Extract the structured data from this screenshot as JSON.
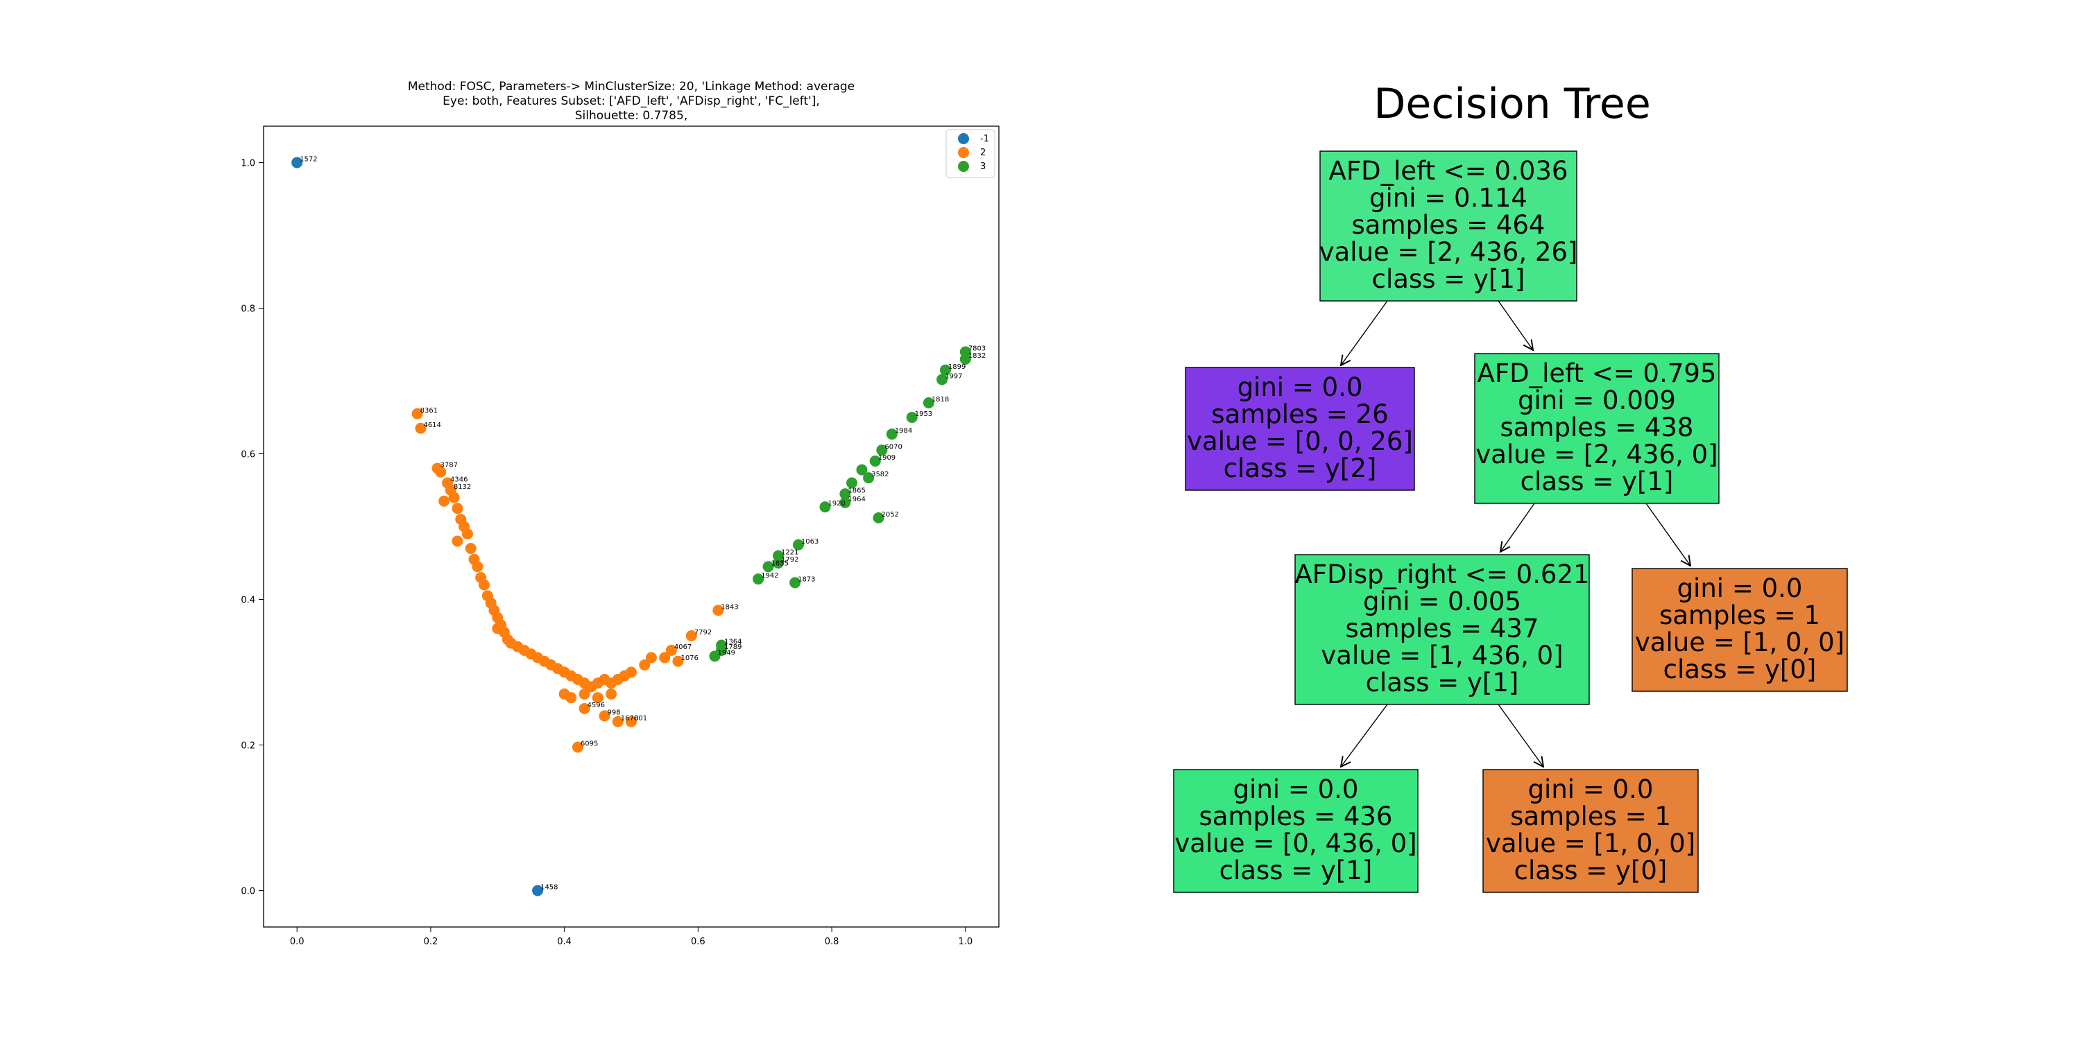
{
  "chart_data": [
    {
      "type": "scatter",
      "title_lines": [
        "Method: FOSC, Parameters-> MinClusterSize: 20, 'Linkage Method: average",
        "Eye: both, Features Subset: ['AFD_left', 'AFDisp_right', 'FC_left'],",
        "Silhouette: 0.7785,"
      ],
      "xlabel": "",
      "ylabel": "",
      "xlim": [
        -0.05,
        1.05
      ],
      "ylim": [
        -0.05,
        1.05
      ],
      "xticks": [
        "0.0",
        "0.2",
        "0.4",
        "0.6",
        "0.8",
        "1.0"
      ],
      "yticks": [
        "0.0",
        "0.2",
        "0.4",
        "0.6",
        "0.8",
        "1.0"
      ],
      "legend": {
        "placement": "top-right",
        "entries": [
          {
            "label": "-1",
            "color": "#1f77b4"
          },
          {
            "label": "2",
            "color": "#ff7f0e"
          },
          {
            "label": "3",
            "color": "#2ca02c"
          }
        ]
      },
      "series": [
        {
          "name": "-1",
          "color": "#1f77b4",
          "points": [
            {
              "x": 0.0,
              "y": 1.0,
              "label": "1572"
            },
            {
              "x": 0.36,
              "y": 0.0,
              "label": "1458"
            }
          ]
        },
        {
          "name": "2",
          "color": "#ff7f0e",
          "points": [
            {
              "x": 0.18,
              "y": 0.655,
              "label": "8361"
            },
            {
              "x": 0.185,
              "y": 0.635,
              "label": "4614"
            },
            {
              "x": 0.21,
              "y": 0.58,
              "label": "3787"
            },
            {
              "x": 0.215,
              "y": 0.575,
              "label": ""
            },
            {
              "x": 0.225,
              "y": 0.56,
              "label": "4346"
            },
            {
              "x": 0.23,
              "y": 0.55,
              "label": "8132"
            },
            {
              "x": 0.235,
              "y": 0.54,
              "label": ""
            },
            {
              "x": 0.22,
              "y": 0.535,
              "label": ""
            },
            {
              "x": 0.24,
              "y": 0.525,
              "label": ""
            },
            {
              "x": 0.245,
              "y": 0.51,
              "label": ""
            },
            {
              "x": 0.25,
              "y": 0.5,
              "label": ""
            },
            {
              "x": 0.24,
              "y": 0.48,
              "label": ""
            },
            {
              "x": 0.255,
              "y": 0.49,
              "label": ""
            },
            {
              "x": 0.26,
              "y": 0.47,
              "label": ""
            },
            {
              "x": 0.265,
              "y": 0.455,
              "label": ""
            },
            {
              "x": 0.27,
              "y": 0.445,
              "label": ""
            },
            {
              "x": 0.275,
              "y": 0.43,
              "label": ""
            },
            {
              "x": 0.28,
              "y": 0.42,
              "label": ""
            },
            {
              "x": 0.285,
              "y": 0.405,
              "label": ""
            },
            {
              "x": 0.29,
              "y": 0.395,
              "label": ""
            },
            {
              "x": 0.295,
              "y": 0.385,
              "label": ""
            },
            {
              "x": 0.3,
              "y": 0.375,
              "label": ""
            },
            {
              "x": 0.305,
              "y": 0.365,
              "label": ""
            },
            {
              "x": 0.3,
              "y": 0.36,
              "label": ""
            },
            {
              "x": 0.31,
              "y": 0.355,
              "label": ""
            },
            {
              "x": 0.315,
              "y": 0.345,
              "label": ""
            },
            {
              "x": 0.32,
              "y": 0.34,
              "label": ""
            },
            {
              "x": 0.33,
              "y": 0.335,
              "label": ""
            },
            {
              "x": 0.34,
              "y": 0.33,
              "label": ""
            },
            {
              "x": 0.35,
              "y": 0.325,
              "label": ""
            },
            {
              "x": 0.36,
              "y": 0.32,
              "label": ""
            },
            {
              "x": 0.37,
              "y": 0.315,
              "label": ""
            },
            {
              "x": 0.38,
              "y": 0.31,
              "label": ""
            },
            {
              "x": 0.39,
              "y": 0.305,
              "label": ""
            },
            {
              "x": 0.4,
              "y": 0.3,
              "label": ""
            },
            {
              "x": 0.41,
              "y": 0.295,
              "label": ""
            },
            {
              "x": 0.42,
              "y": 0.29,
              "label": ""
            },
            {
              "x": 0.43,
              "y": 0.285,
              "label": ""
            },
            {
              "x": 0.44,
              "y": 0.28,
              "label": ""
            },
            {
              "x": 0.45,
              "y": 0.285,
              "label": ""
            },
            {
              "x": 0.46,
              "y": 0.29,
              "label": ""
            },
            {
              "x": 0.47,
              "y": 0.285,
              "label": ""
            },
            {
              "x": 0.48,
              "y": 0.29,
              "label": ""
            },
            {
              "x": 0.49,
              "y": 0.295,
              "label": ""
            },
            {
              "x": 0.4,
              "y": 0.27,
              "label": ""
            },
            {
              "x": 0.41,
              "y": 0.265,
              "label": ""
            },
            {
              "x": 0.43,
              "y": 0.27,
              "label": ""
            },
            {
              "x": 0.45,
              "y": 0.265,
              "label": ""
            },
            {
              "x": 0.47,
              "y": 0.27,
              "label": ""
            },
            {
              "x": 0.5,
              "y": 0.3,
              "label": ""
            },
            {
              "x": 0.52,
              "y": 0.31,
              "label": ""
            },
            {
              "x": 0.53,
              "y": 0.32,
              "label": ""
            },
            {
              "x": 0.55,
              "y": 0.32,
              "label": ""
            },
            {
              "x": 0.56,
              "y": 0.33,
              "label": "4067"
            },
            {
              "x": 0.57,
              "y": 0.315,
              "label": "1076"
            },
            {
              "x": 0.59,
              "y": 0.35,
              "label": "7792"
            },
            {
              "x": 0.63,
              "y": 0.385,
              "label": "1843"
            },
            {
              "x": 0.43,
              "y": 0.25,
              "label": "4596"
            },
            {
              "x": 0.46,
              "y": 0.24,
              "label": "998"
            },
            {
              "x": 0.48,
              "y": 0.232,
              "label": "1670"
            },
            {
              "x": 0.5,
              "y": 0.232,
              "label": "801"
            },
            {
              "x": 0.42,
              "y": 0.197,
              "label": "6095"
            }
          ]
        },
        {
          "name": "3",
          "color": "#2ca02c",
          "points": [
            {
              "x": 1.0,
              "y": 0.74,
              "label": "7803"
            },
            {
              "x": 1.0,
              "y": 0.73,
              "label": "1832"
            },
            {
              "x": 0.97,
              "y": 0.715,
              "label": "1899"
            },
            {
              "x": 0.965,
              "y": 0.702,
              "label": "1997"
            },
            {
              "x": 0.945,
              "y": 0.67,
              "label": "1818"
            },
            {
              "x": 0.92,
              "y": 0.65,
              "label": "1953"
            },
            {
              "x": 0.89,
              "y": 0.627,
              "label": "1984"
            },
            {
              "x": 0.875,
              "y": 0.605,
              "label": "6070"
            },
            {
              "x": 0.865,
              "y": 0.59,
              "label": "1909"
            },
            {
              "x": 0.845,
              "y": 0.578,
              "label": ""
            },
            {
              "x": 0.855,
              "y": 0.567,
              "label": "3582"
            },
            {
              "x": 0.83,
              "y": 0.56,
              "label": ""
            },
            {
              "x": 0.82,
              "y": 0.545,
              "label": "1865"
            },
            {
              "x": 0.82,
              "y": 0.533,
              "label": "1964"
            },
            {
              "x": 0.79,
              "y": 0.527,
              "label": "1920"
            },
            {
              "x": 0.87,
              "y": 0.512,
              "label": "2052"
            },
            {
              "x": 0.75,
              "y": 0.475,
              "label": "1063"
            },
            {
              "x": 0.72,
              "y": 0.46,
              "label": "1221"
            },
            {
              "x": 0.72,
              "y": 0.45,
              "label": "1792"
            },
            {
              "x": 0.705,
              "y": 0.445,
              "label": "1855"
            },
            {
              "x": 0.69,
              "y": 0.428,
              "label": "1942"
            },
            {
              "x": 0.745,
              "y": 0.423,
              "label": "1873"
            },
            {
              "x": 0.635,
              "y": 0.337,
              "label": "1364"
            },
            {
              "x": 0.635,
              "y": 0.33,
              "label": "1789"
            },
            {
              "x": 0.625,
              "y": 0.322,
              "label": "1949"
            }
          ]
        }
      ]
    },
    {
      "type": "tree",
      "title": "Decision Tree",
      "nodes": [
        {
          "id": "n0",
          "lines": [
            "AFD_left <= 0.036",
            "gini = 0.114",
            "samples = 464",
            "value = [2, 436, 26]",
            "class = y[1]"
          ],
          "fill": "#47e58a"
        },
        {
          "id": "n1",
          "lines": [
            "gini = 0.0",
            "samples = 26",
            "value = [0, 0, 26]",
            "class = y[2]"
          ],
          "fill": "#8139e5"
        },
        {
          "id": "n2",
          "lines": [
            "AFD_left <= 0.795",
            "gini = 0.009",
            "samples = 438",
            "value = [2, 436, 0]",
            "class = y[1]"
          ],
          "fill": "#3be582"
        },
        {
          "id": "n3",
          "lines": [
            "AFDisp_right <= 0.621",
            "gini = 0.005",
            "samples = 437",
            "value = [1, 436, 0]",
            "class = y[1]"
          ],
          "fill": "#3ae581"
        },
        {
          "id": "n4",
          "lines": [
            "gini = 0.0",
            "samples = 1",
            "value = [1, 0, 0]",
            "class = y[0]"
          ],
          "fill": "#e58139"
        },
        {
          "id": "n5",
          "lines": [
            "gini = 0.0",
            "samples = 436",
            "value = [0, 436, 0]",
            "class = y[1]"
          ],
          "fill": "#39e581"
        },
        {
          "id": "n6",
          "lines": [
            "gini = 0.0",
            "samples = 1",
            "value = [1, 0, 0]",
            "class = y[0]"
          ],
          "fill": "#e58139"
        }
      ],
      "edges": [
        [
          "n0",
          "n1"
        ],
        [
          "n0",
          "n2"
        ],
        [
          "n2",
          "n3"
        ],
        [
          "n2",
          "n4"
        ],
        [
          "n3",
          "n5"
        ],
        [
          "n3",
          "n6"
        ]
      ]
    }
  ]
}
